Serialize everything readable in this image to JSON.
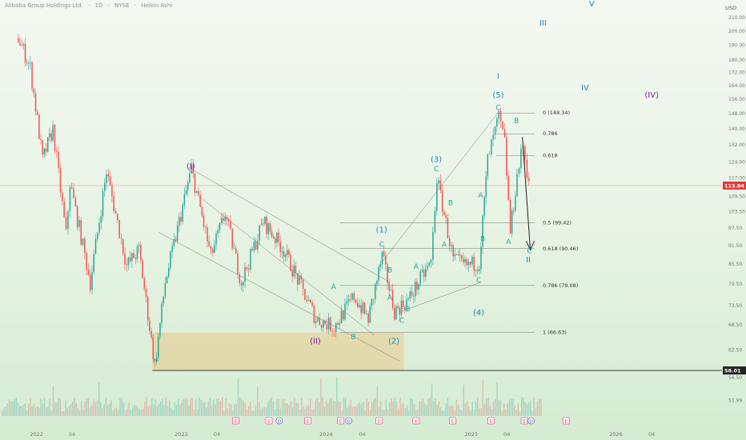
{
  "header": {
    "symbol_name": "Alibaba Group Holdings Ltd.",
    "interval": "1D",
    "exchange": "NYSE",
    "chart_style": "Heikin Ashi"
  },
  "currency": "USD",
  "colors": {
    "up": "#26a69a",
    "down": "#ef5350",
    "price_badge": "#e53935",
    "wave_primary": "#1e88b5",
    "wave_intermediate": "#7b1fa2",
    "wave_minor": "#26a69a",
    "fib": "#777777",
    "zone": "#e8c98a"
  },
  "chart_data": {
    "type": "candlestick",
    "title": "",
    "xlabel": "",
    "ylabel": "",
    "x_ticks": [
      "2022",
      "04",
      "2023",
      "04",
      "2024",
      "04",
      "2025",
      "04",
      "2026",
      "04"
    ],
    "y_ticks": [
      51.99,
      56.5,
      62.5,
      68.5,
      73.5,
      79.5,
      85.5,
      91.5,
      97.5,
      103.5,
      109.5,
      117.0,
      124.0,
      132.0,
      140.0,
      148.0,
      156.0,
      164.0,
      172.0,
      180.0,
      190.0,
      200.0,
      210.0
    ],
    "y_tick_labels": [
      "51.99",
      "56.50",
      "62.50",
      "68.50",
      "73.50",
      "79.50",
      "85.50",
      "91.50",
      "97.50",
      "103.50",
      "109.50",
      "117.00",
      "124.00",
      "132.00",
      "140.00",
      "148.00",
      "156.00",
      "164.00",
      "172.00",
      "180.00",
      "190.00",
      "200.00",
      "210.00"
    ],
    "ylim": [
      50,
      215
    ],
    "log_scale": true,
    "grid": false,
    "current_price": "113.84",
    "support_level": "58.01",
    "key_points": [
      {
        "date": "2021-11-15",
        "price": 195
      },
      {
        "date": "2021-12-15",
        "price": 175
      },
      {
        "date": "2022-01-15",
        "price": 125
      },
      {
        "date": "2022-02-10",
        "price": 140
      },
      {
        "date": "2022-03-15",
        "price": 95
      },
      {
        "date": "2022-03-25",
        "price": 115
      },
      {
        "date": "2022-05-15",
        "price": 80
      },
      {
        "date": "2022-06-25",
        "price": 120
      },
      {
        "date": "2022-08-15",
        "price": 85
      },
      {
        "date": "2022-09-15",
        "price": 90
      },
      {
        "date": "2022-10-25",
        "price": 59
      },
      {
        "date": "2022-11-20",
        "price": 80
      },
      {
        "date": "2023-01-25",
        "price": 121
      },
      {
        "date": "2023-03-15",
        "price": 88
      },
      {
        "date": "2023-04-20",
        "price": 103
      },
      {
        "date": "2023-05-31",
        "price": 80
      },
      {
        "date": "2023-07-25",
        "price": 100
      },
      {
        "date": "2023-09-15",
        "price": 90
      },
      {
        "date": "2023-10-15",
        "price": 82
      },
      {
        "date": "2023-12-05",
        "price": 70
      },
      {
        "date": "2024-01-20",
        "price": 68
      },
      {
        "date": "2024-03-10",
        "price": 76
      },
      {
        "date": "2024-04-15",
        "price": 70
      },
      {
        "date": "2024-05-20",
        "price": 88
      },
      {
        "date": "2024-06-20",
        "price": 72
      },
      {
        "date": "2024-07-25",
        "price": 75
      },
      {
        "date": "2024-08-20",
        "price": 80
      },
      {
        "date": "2024-09-20",
        "price": 86
      },
      {
        "date": "2024-10-05",
        "price": 117
      },
      {
        "date": "2024-11-15",
        "price": 87
      },
      {
        "date": "2024-12-15",
        "price": 85
      },
      {
        "date": "2025-01-20",
        "price": 86
      },
      {
        "date": "2025-02-10",
        "price": 125
      },
      {
        "date": "2025-03-10",
        "price": 146
      },
      {
        "date": "2025-03-25",
        "price": 133
      },
      {
        "date": "2025-04-08",
        "price": 96
      },
      {
        "date": "2025-04-25",
        "price": 118
      },
      {
        "date": "2025-05-10",
        "price": 132
      },
      {
        "date": "2025-05-20",
        "price": 120
      },
      {
        "date": "2025-05-30",
        "price": 113.84
      }
    ],
    "fib_levels": [
      {
        "label": "0 (148.34)",
        "price": 148.34
      },
      {
        "label": "0.786",
        "price": 137.5
      },
      {
        "label": "0.618",
        "price": 127.0
      },
      {
        "label": "0.5 (99.42)",
        "price": 99.42
      },
      {
        "label": "0.618 (90.46)",
        "price": 90.46
      },
      {
        "label": "0.786 (79.08)",
        "price": 79.08
      },
      {
        "label": "1 (66.63)",
        "price": 66.63
      }
    ],
    "zone": {
      "from_date": "2022-10-20",
      "to_date": "2024-07-15",
      "low_price": 58.01,
      "high_price": 66.63
    },
    "wave_labels": [
      {
        "text": "(I)",
        "date": "2023-01-25",
        "price": 121,
        "kind": "intermediate"
      },
      {
        "text": "(II)",
        "date": "2023-12-05",
        "price": 64,
        "kind": "intermediate"
      },
      {
        "text": "(IV)",
        "date": "2026-04-01",
        "price": 157,
        "kind": "intermediate"
      },
      {
        "text": "I",
        "date": "2025-03-10",
        "price": 168,
        "kind": "primary"
      },
      {
        "text": "II",
        "date": "2025-05-25",
        "price": 86,
        "kind": "primary"
      },
      {
        "text": "III",
        "date": "2025-07-01",
        "price": 204,
        "kind": "primary"
      },
      {
        "text": "IV",
        "date": "2025-10-15",
        "price": 161,
        "kind": "primary"
      },
      {
        "text": "V",
        "date": "2025-11-01",
        "price": 222,
        "kind": "primary"
      },
      {
        "text": "(1)",
        "date": "2024-05-20",
        "price": 96,
        "kind": "primary"
      },
      {
        "text": "(2)",
        "date": "2024-06-20",
        "price": 64,
        "kind": "primary"
      },
      {
        "text": "(3)",
        "date": "2024-10-05",
        "price": 124,
        "kind": "primary"
      },
      {
        "text": "(4)",
        "date": "2025-01-20",
        "price": 71,
        "kind": "primary"
      },
      {
        "text": "(5)",
        "date": "2025-03-10",
        "price": 157,
        "kind": "primary"
      },
      {
        "text": "A",
        "date": "2024-01-20",
        "price": 78,
        "kind": "minor"
      },
      {
        "text": "B",
        "date": "2024-03-10",
        "price": 65,
        "kind": "minor"
      },
      {
        "text": "C",
        "date": "2024-05-20",
        "price": 91,
        "kind": "minor"
      },
      {
        "text": "B",
        "date": "2024-06-10",
        "price": 83,
        "kind": "minor"
      },
      {
        "text": "A",
        "date": "2024-06-10",
        "price": 75,
        "kind": "minor"
      },
      {
        "text": "C",
        "date": "2024-07-10",
        "price": 69,
        "kind": "minor"
      },
      {
        "text": "A",
        "date": "2024-08-15",
        "price": 84,
        "kind": "minor"
      },
      {
        "text": "B",
        "date": "2024-07-25",
        "price": 72,
        "kind": "minor"
      },
      {
        "text": "C",
        "date": "2024-10-05",
        "price": 120,
        "kind": "minor"
      },
      {
        "text": "B",
        "date": "2024-11-10",
        "price": 106,
        "kind": "minor"
      },
      {
        "text": "A",
        "date": "2024-10-25",
        "price": 91,
        "kind": "minor"
      },
      {
        "text": "C",
        "date": "2025-01-20",
        "price": 80,
        "kind": "minor"
      },
      {
        "text": "A",
        "date": "2025-01-25",
        "price": 109,
        "kind": "minor"
      },
      {
        "text": "B",
        "date": "2025-01-30",
        "price": 93,
        "kind": "minor"
      },
      {
        "text": "C",
        "date": "2025-03-10",
        "price": 150,
        "kind": "minor"
      },
      {
        "text": "B",
        "date": "2025-04-25",
        "price": 143,
        "kind": "minor"
      },
      {
        "text": "A",
        "date": "2025-04-05",
        "price": 92,
        "kind": "minor"
      },
      {
        "text": "C",
        "date": "2025-05-28",
        "price": 89,
        "kind": "minor"
      }
    ],
    "events": [
      {
        "date": "2023-05-18",
        "kind": "E"
      },
      {
        "date": "2023-08-10",
        "kind": "E"
      },
      {
        "date": "2023-09-05",
        "kind": "D"
      },
      {
        "date": "2023-11-16",
        "kind": "E"
      },
      {
        "date": "2024-02-07",
        "kind": "E"
      },
      {
        "date": "2024-02-27",
        "kind": "D"
      },
      {
        "date": "2024-05-14",
        "kind": "E"
      },
      {
        "date": "2024-08-15",
        "kind": "E"
      },
      {
        "date": "2024-11-15",
        "kind": "E"
      },
      {
        "date": "2025-02-20",
        "kind": "E"
      },
      {
        "date": "2025-05-15",
        "kind": "E"
      },
      {
        "date": "2025-06-01",
        "kind": "D"
      },
      {
        "date": "2025-08-28",
        "kind": "E"
      }
    ]
  }
}
